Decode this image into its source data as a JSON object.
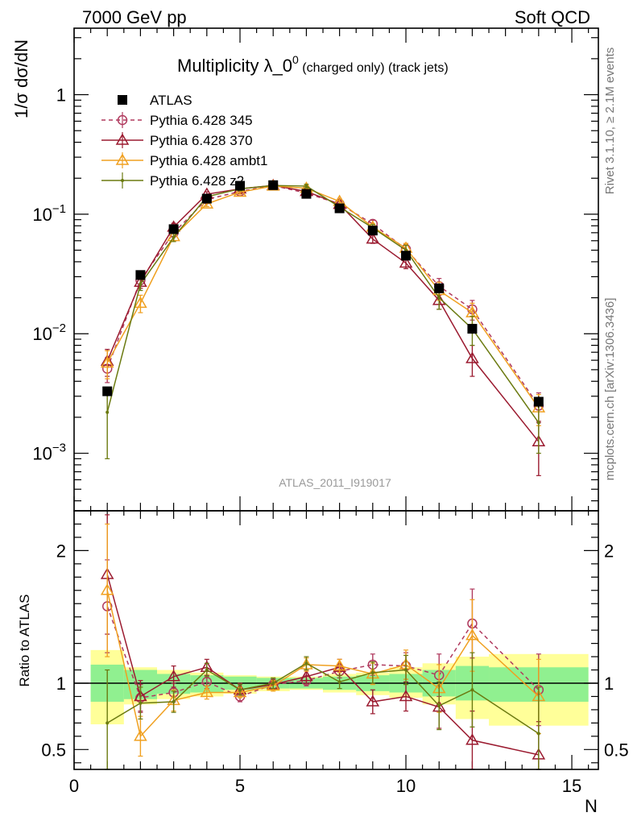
{
  "header": {
    "left": "7000 GeV pp",
    "right": "Soft QCD"
  },
  "side_labels": {
    "rivet": "Rivet 3.1.10, ≥ 2.1M events",
    "mcplots": "mcplots.cern.ch [arXiv:1306.3436]"
  },
  "watermark": "ATLAS_2011_I919017",
  "chart_data": [
    {
      "type": "line",
      "title_main": "Multiplicity λ_0",
      "title_sup": "0",
      "title_tail": " (charged only) (track jets)",
      "ylabel": "1/σ dσ/dN",
      "yscale": "log",
      "ylim": [
        0.00033,
        3.6
      ],
      "xlim": [
        0,
        15.8
      ],
      "ytick_labels": [
        {
          "value": 1,
          "base": "1",
          "exp": ""
        },
        {
          "value": 0.1,
          "base": "10",
          "exp": "−1"
        },
        {
          "value": 0.01,
          "base": "10",
          "exp": "−2"
        },
        {
          "value": 0.001,
          "base": "10",
          "exp": "−3"
        }
      ],
      "legend_position": "top-left",
      "series": [
        {
          "name": "ATLAS",
          "color": "#000000",
          "marker": "square",
          "x": [
            1,
            2,
            3,
            4,
            5,
            6,
            7,
            8,
            9,
            10,
            11,
            12,
            14
          ],
          "y": [
            0.0033,
            0.031,
            0.075,
            0.135,
            0.173,
            0.175,
            0.148,
            0.112,
            0.073,
            0.045,
            0.024,
            0.011,
            0.0027
          ],
          "yerr": [
            0.0003,
            0.002,
            0.003,
            0.004,
            0.004,
            0.004,
            0.004,
            0.003,
            0.003,
            0.002,
            0.002,
            0.001,
            0.0003
          ]
        },
        {
          "name": "Pythia 6.428 345",
          "color": "#b03a5e",
          "marker": "circle",
          "dashed": true,
          "x": [
            1,
            2,
            3,
            4,
            5,
            6,
            7,
            8,
            9,
            10,
            11,
            12,
            14
          ],
          "y": [
            0.0051,
            0.028,
            0.07,
            0.133,
            0.155,
            0.174,
            0.15,
            0.122,
            0.083,
            0.051,
            0.025,
            0.016,
            0.0025
          ],
          "yerr": [
            0.0012,
            0.003,
            0.005,
            0.006,
            0.006,
            0.006,
            0.006,
            0.006,
            0.006,
            0.005,
            0.004,
            0.003,
            0.0007
          ]
        },
        {
          "name": "Pythia 6.428 370",
          "color": "#9b1b30",
          "marker": "triangle",
          "x": [
            1,
            2,
            3,
            4,
            5,
            6,
            7,
            8,
            9,
            10,
            11,
            12,
            14
          ],
          "y": [
            0.0059,
            0.027,
            0.078,
            0.147,
            0.163,
            0.174,
            0.155,
            0.121,
            0.062,
            0.039,
            0.019,
            0.0062,
            0.00125
          ],
          "yerr": [
            0.0015,
            0.003,
            0.006,
            0.007,
            0.007,
            0.007,
            0.007,
            0.006,
            0.005,
            0.004,
            0.003,
            0.0018,
            0.0006
          ]
        },
        {
          "name": "Pythia 6.428 ambt1",
          "color": "#f0a020",
          "marker": "triangle",
          "x": [
            1,
            2,
            3,
            4,
            5,
            6,
            7,
            8,
            9,
            10,
            11,
            12,
            14
          ],
          "y": [
            0.0057,
            0.018,
            0.065,
            0.122,
            0.153,
            0.172,
            0.165,
            0.128,
            0.078,
            0.052,
            0.023,
            0.015,
            0.0024
          ],
          "yerr": [
            0.0015,
            0.003,
            0.005,
            0.006,
            0.006,
            0.006,
            0.006,
            0.006,
            0.005,
            0.005,
            0.004,
            0.003,
            0.0007
          ]
        },
        {
          "name": "Pythia 6.428 z2",
          "color": "#6b7a10",
          "marker": "dot",
          "x": [
            1,
            2,
            3,
            4,
            5,
            6,
            7,
            8,
            9,
            10,
            11,
            12,
            14
          ],
          "y": [
            0.0022,
            0.026,
            0.064,
            0.14,
            0.163,
            0.174,
            0.172,
            0.115,
            0.077,
            0.05,
            0.02,
            0.011,
            0.0018
          ],
          "yerr": [
            0.0013,
            0.003,
            0.005,
            0.006,
            0.006,
            0.006,
            0.006,
            0.006,
            0.005,
            0.005,
            0.004,
            0.003,
            0.0008
          ]
        }
      ]
    },
    {
      "type": "line",
      "ylabel": "Ratio to ATLAS",
      "xlabel": "N",
      "xlim": [
        0,
        15.8
      ],
      "ylim": [
        0.35,
        2.3
      ],
      "xtick_labels": [
        {
          "value": 0,
          "label": "0"
        },
        {
          "value": 5,
          "label": "5"
        },
        {
          "value": 10,
          "label": "10"
        },
        {
          "value": 15,
          "label": "15"
        }
      ],
      "ytick_labels": [
        {
          "value": 2,
          "label": "2"
        },
        {
          "value": 1,
          "label": "1"
        },
        {
          "value": 0.5,
          "label": "0.5"
        }
      ],
      "bands": {
        "bins": [
          [
            0.5,
            1.5
          ],
          [
            1.5,
            2.5
          ],
          [
            2.5,
            3.5
          ],
          [
            3.5,
            4.5
          ],
          [
            4.5,
            5.5
          ],
          [
            5.5,
            6.5
          ],
          [
            6.5,
            7.5
          ],
          [
            7.5,
            8.5
          ],
          [
            8.5,
            9.5
          ],
          [
            9.5,
            10.5
          ],
          [
            10.5,
            11.5
          ],
          [
            11.5,
            12.5
          ],
          [
            12.5,
            15.5
          ]
        ],
        "stat_color": "#90f090",
        "total_color": "#ffff99",
        "stat": [
          [
            0.86,
            1.14
          ],
          [
            0.88,
            1.1
          ],
          [
            0.92,
            1.07
          ],
          [
            0.93,
            1.06
          ],
          [
            0.95,
            1.05
          ],
          [
            0.96,
            1.04
          ],
          [
            0.96,
            1.04
          ],
          [
            0.95,
            1.05
          ],
          [
            0.94,
            1.06
          ],
          [
            0.93,
            1.07
          ],
          [
            0.9,
            1.1
          ],
          [
            0.87,
            1.13
          ],
          [
            0.86,
            1.12
          ]
        ],
        "total": [
          [
            0.69,
            1.25
          ],
          [
            0.84,
            1.12
          ],
          [
            0.88,
            1.1
          ],
          [
            0.9,
            1.08
          ],
          [
            0.92,
            1.06
          ],
          [
            0.94,
            1.05
          ],
          [
            0.95,
            1.05
          ],
          [
            0.93,
            1.07
          ],
          [
            0.91,
            1.08
          ],
          [
            0.89,
            1.12
          ],
          [
            0.84,
            1.15
          ],
          [
            0.73,
            1.2
          ],
          [
            0.68,
            1.22
          ]
        ]
      },
      "series": [
        {
          "name": "Pythia 6.428 345",
          "color": "#b03a5e",
          "marker": "circle",
          "dashed": true,
          "x": [
            1,
            2,
            3,
            4,
            5,
            6,
            7,
            8,
            9,
            10,
            11,
            12,
            14
          ],
          "y": [
            1.58,
            0.89,
            0.93,
            1.01,
            0.9,
            0.99,
            1.02,
            1.09,
            1.14,
            1.13,
            1.06,
            1.45,
            0.95
          ],
          "yerr": [
            0.35,
            0.1,
            0.07,
            0.05,
            0.04,
            0.04,
            0.04,
            0.05,
            0.08,
            0.1,
            0.16,
            0.26,
            0.27
          ]
        },
        {
          "name": "Pythia 6.428 370",
          "color": "#9b1b30",
          "marker": "triangle",
          "x": [
            1,
            2,
            3,
            4,
            5,
            6,
            7,
            8,
            9,
            10,
            11,
            12,
            14
          ],
          "y": [
            1.82,
            0.9,
            1.05,
            1.12,
            0.95,
            0.99,
            1.05,
            1.12,
            0.86,
            0.9,
            0.82,
            0.57,
            0.46
          ],
          "yerr": [
            0.45,
            0.12,
            0.08,
            0.06,
            0.05,
            0.04,
            0.05,
            0.06,
            0.09,
            0.11,
            0.16,
            0.22,
            0.25
          ]
        },
        {
          "name": "Pythia 6.428 ambt1",
          "color": "#f0a020",
          "marker": "triangle",
          "x": [
            1,
            2,
            3,
            4,
            5,
            6,
            7,
            8,
            9,
            10,
            11,
            12,
            14
          ],
          "y": [
            1.7,
            0.6,
            0.87,
            0.93,
            0.93,
            0.98,
            1.14,
            1.13,
            1.07,
            1.14,
            0.96,
            1.36,
            0.9
          ],
          "yerr": [
            0.5,
            0.15,
            0.08,
            0.05,
            0.04,
            0.04,
            0.05,
            0.05,
            0.08,
            0.11,
            0.18,
            0.27,
            0.28
          ]
        },
        {
          "name": "Pythia 6.428 z2",
          "color": "#6b7a10",
          "marker": "dot",
          "x": [
            1,
            2,
            3,
            4,
            5,
            6,
            7,
            8,
            9,
            10,
            11,
            12,
            14
          ],
          "y": [
            0.7,
            0.85,
            0.86,
            1.1,
            0.95,
            1.0,
            1.15,
            1.01,
            1.08,
            1.1,
            0.83,
            0.95,
            0.62
          ],
          "yerr": [
            0.4,
            0.12,
            0.08,
            0.05,
            0.04,
            0.04,
            0.05,
            0.05,
            0.08,
            0.11,
            0.18,
            0.28,
            0.35
          ]
        }
      ]
    }
  ]
}
